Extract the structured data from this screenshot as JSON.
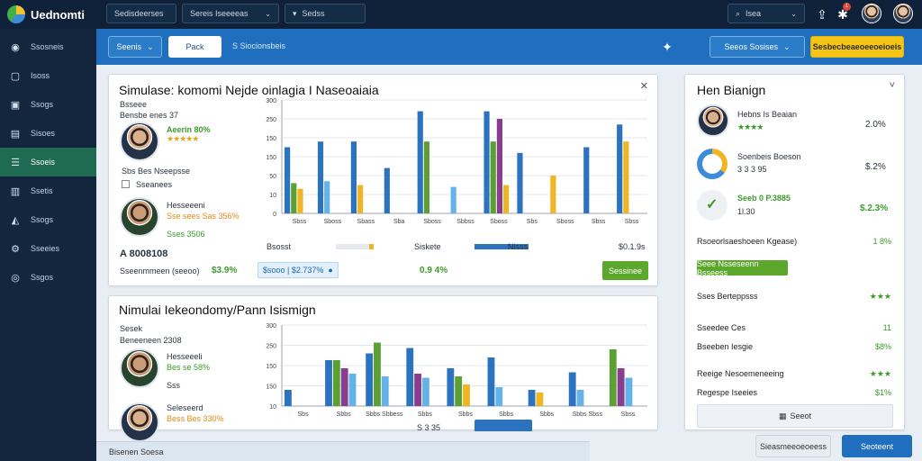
{
  "app": {
    "title": "Uednomti"
  },
  "topbar": {
    "select1": "Sedisdeerses",
    "select2": "Sereis Iseeeeas",
    "select3": "Sedss",
    "search": "Isea"
  },
  "sidebar": {
    "items": [
      {
        "label": "Ssosneis",
        "icon": "globe-icon"
      },
      {
        "label": "Isoss",
        "icon": "square-icon"
      },
      {
        "label": "Ssogs",
        "icon": "doc-icon"
      },
      {
        "label": "Sisoes",
        "icon": "folder-icon"
      },
      {
        "label": "Ssoeis",
        "icon": "list-icon",
        "active": true
      },
      {
        "label": "Ssetis",
        "icon": "chart-icon"
      },
      {
        "label": "Ssogs",
        "icon": "image-icon"
      },
      {
        "label": "Sseeies",
        "icon": "gear-icon"
      },
      {
        "label": "Ssgos",
        "icon": "circle-icon"
      }
    ]
  },
  "toolbar": {
    "btn1": "Seenis",
    "btn2": "Pack",
    "text1": "S  Siocionsbeis",
    "right_select": "Seeos  Sosises",
    "yellow_btn": "Sesbecbeaeoeeoeioeis"
  },
  "panel1": {
    "title": "Simulase: komomi  Nejde oinlagia  I Naseoaiaia",
    "sub1": "Bsseee",
    "sub2": "Bensbe enes 37",
    "p1_line1": "Aeerin 80%",
    "p1_stars": "★★★★★",
    "p1_sub": "Sbs Bes  Nseepsse",
    "checkbox": "Sseanees",
    "p2_name": "Hesseeeni",
    "p2_line2": "Sse  sees Sas 356%",
    "p2_line3": "Sses 3506",
    "total_label": "A 8008108",
    "footer_label": "Sseenmmeen (seeoo)",
    "f_pct1": "$3.9%",
    "f_pill": "$sooo | $2.737%",
    "f_pct2": "0.9 4%",
    "legend1": "Bsosst",
    "legend2": "Siskete",
    "legend3": "Nisss",
    "legend_value": "$0.1.9s",
    "action": "Sessinee",
    "x_labels": [
      "Sbss",
      "Sboss",
      "Sbass",
      "Sba",
      "Sboss",
      "Sbbss",
      "Sboss",
      "Sbs",
      "Sboss",
      "Sbss",
      "Sbss"
    ],
    "y_labels": [
      "300",
      "250",
      "150",
      "150",
      "50",
      "10",
      "0"
    ]
  },
  "panel2": {
    "title": "Nimulai Iekeondomy/Pann Isismign",
    "sub1": "Sesek",
    "sub2": "Beneeneen 2308",
    "p1_name": "Hesseeeli",
    "p1_line2": "Bes se 58%",
    "p1_line3": "Sss",
    "p2_name": "Seleseerd",
    "p2_line2": "Bess Bes 330%",
    "x_labels": [
      "Sbs",
      "Sbbs",
      "Sbbs Sbbess",
      "Sbbs",
      "Sbbs",
      "Sbbs",
      "Sbbs",
      "Sbbs Sbss",
      "Sbss"
    ],
    "y_labels": [
      "300",
      "250",
      "150",
      "150",
      "10"
    ],
    "bottom_label": "S  3 35"
  },
  "right": {
    "title": "Hen Bianign",
    "r1_name": "Hebns Is Beaian",
    "r1_stars": "★★★★",
    "r1_value": "2.0%",
    "r2_name": "Soenbeis Boeson",
    "r2_sub": "3 3 3 95",
    "r2_value": "$.2%",
    "r3_name": "Seeb 0 P.3885",
    "r3_sub": "1l.30",
    "r3_value": "$.2.3%",
    "row1_label": "Rsoeorlsaeshoeen Kgease)",
    "row1_value": "1 8%",
    "green_btn": "Seee  Nsseseenn  Bsseess",
    "row2_label": "Sses Berteppsss",
    "row2_value": "★★★",
    "row3_label": "Sseedee Ces",
    "row3_value": "11",
    "row4_label": "Bseeben Iesgie",
    "row4_value": "$8%",
    "row5_label": "Reeige Nesoemeneeing",
    "row5_value": "★★★",
    "row6_label": "Regespe Iseeies",
    "row6_value": "$1%",
    "bottom_btn": "Seeot"
  },
  "footer": {
    "status": "Bisenen Soesa",
    "btn_secondary": "Sieasmeeoeoeess",
    "btn_primary": "Seoteent"
  },
  "colors": {
    "blue": "#2b73bf",
    "green": "#5aa033",
    "purple": "#8a3c8f",
    "yellow": "#efb524",
    "light_blue": "#63b2e8",
    "accent_yellow": "#f5c518"
  },
  "chart_data": [
    {
      "type": "bar",
      "title": "Simulase: komomi  Nejde oinlagia  I Naseoaiaia",
      "ylim": [
        0,
        300
      ],
      "categories": [
        "Sbss",
        "Sboss",
        "Sbass",
        "Sba",
        "Sboss",
        "Sbbss",
        "Sboss",
        "Sbs",
        "Sboss",
        "Sbss",
        "Sbss"
      ],
      "series": [
        {
          "color": "#2b73bf",
          "values": [
            175,
            190,
            190,
            120,
            270,
            0,
            270,
            160,
            0,
            175,
            235
          ]
        },
        {
          "color": "#5aa033",
          "values": [
            80,
            0,
            0,
            0,
            190,
            0,
            190,
            0,
            0,
            0,
            0
          ]
        },
        {
          "color": "#8a3c8f",
          "values": [
            0,
            0,
            0,
            0,
            0,
            0,
            250,
            0,
            0,
            0,
            0
          ]
        },
        {
          "color": "#efb524",
          "values": [
            65,
            0,
            75,
            0,
            0,
            0,
            75,
            0,
            100,
            0,
            190
          ]
        },
        {
          "color": "#63b2e8",
          "values": [
            0,
            85,
            0,
            0,
            0,
            70,
            0,
            0,
            0,
            0,
            0
          ]
        }
      ]
    },
    {
      "type": "bar",
      "title": "Nimulai Iekeondomy/Pann Isismign",
      "ylim": [
        0,
        300
      ],
      "categories": [
        "Sbs",
        "Sbbs",
        "Sbbs Sbbess",
        "Sbbs",
        "Sbbs",
        "Sbbs",
        "Sbbs",
        "Sbbs Sbss",
        "Sbss"
      ],
      "series": [
        {
          "color": "#2b73bf",
          "values": [
            60,
            170,
            195,
            215,
            140,
            180,
            60,
            125,
            0
          ]
        },
        {
          "color": "#5aa033",
          "values": [
            0,
            170,
            235,
            0,
            110,
            0,
            0,
            0,
            210
          ]
        },
        {
          "color": "#8a3c8f",
          "values": [
            0,
            140,
            0,
            120,
            0,
            0,
            0,
            0,
            140
          ]
        },
        {
          "color": "#efb524",
          "values": [
            0,
            0,
            0,
            0,
            80,
            0,
            50,
            0,
            0
          ]
        },
        {
          "color": "#63b2e8",
          "values": [
            0,
            120,
            110,
            105,
            0,
            70,
            0,
            60,
            105
          ]
        }
      ]
    }
  ]
}
